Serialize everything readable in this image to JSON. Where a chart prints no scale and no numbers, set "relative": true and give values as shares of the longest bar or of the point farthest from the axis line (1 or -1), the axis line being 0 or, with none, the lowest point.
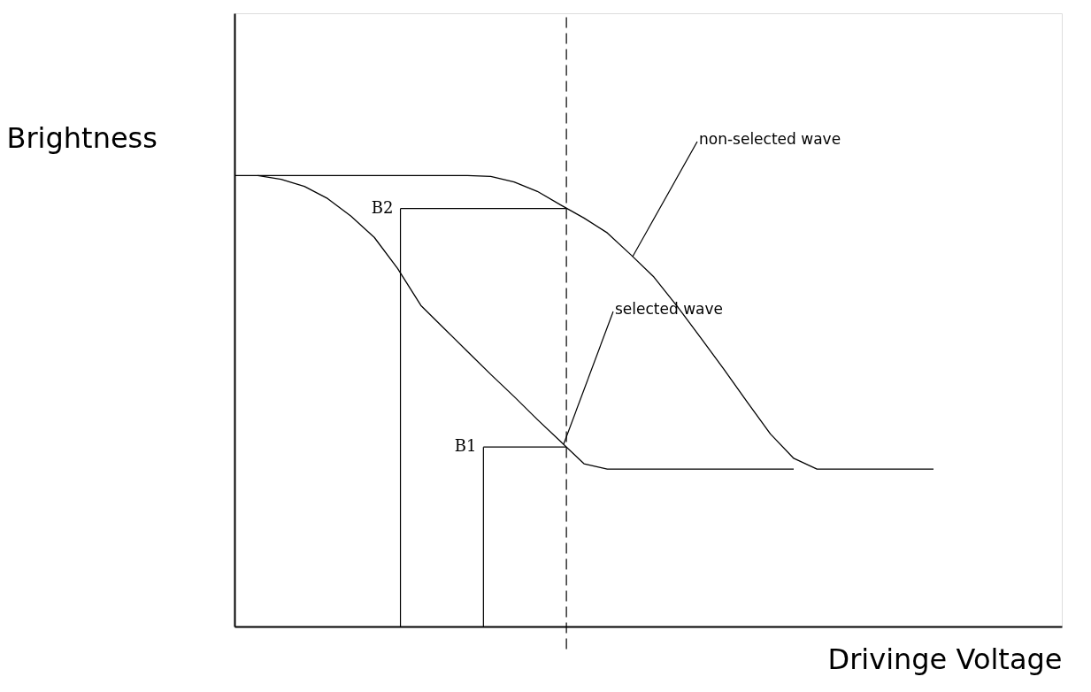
{
  "chart_data": {
    "type": "line",
    "relative": true,
    "xlabel": "Drivinge Voltage",
    "ylabel": "Brightness",
    "categories": [
      null,
      null,
      null,
      null,
      null,
      null,
      null,
      null,
      null,
      null,
      null,
      null,
      null,
      null,
      null,
      null,
      null,
      null,
      null,
      null,
      null,
      null,
      null,
      null,
      null,
      null,
      null,
      null,
      null,
      null,
      null
    ],
    "series": [
      {
        "color": "#000000",
        "values": [
          1.0,
          1.0,
          1.0,
          1.0,
          1.0,
          1.0,
          1.0,
          1.0,
          1.0,
          1.0,
          1.0,
          0.998,
          0.986,
          0.965,
          0.935,
          0.906,
          0.873,
          0.825,
          0.775,
          0.71,
          0.641,
          0.571,
          0.498,
          0.427,
          0.373,
          0.349,
          0.349,
          0.349,
          0.349,
          0.349,
          0.349
        ]
      },
      {
        "color": "#000000",
        "values": [
          null,
          1.0,
          0.992,
          0.976,
          0.949,
          0.91,
          0.863,
          0.794,
          0.712,
          0.661,
          0.61,
          0.559,
          0.51,
          0.459,
          0.41,
          0.361,
          0.349,
          0.349,
          0.349,
          0.349,
          0.349,
          0.349,
          0.349,
          0.349,
          0.349,
          null,
          null,
          null,
          null,
          null,
          null
        ]
      }
    ],
    "ref_lines": [
      {
        "axis": "y",
        "value": 0.927,
        "label": "B2",
        "color": "#000000"
      },
      {
        "axis": "y",
        "value": 0.398,
        "label": "B1",
        "color": "#000000"
      }
    ],
    "annotations": [
      "non-selected wave",
      "selected wave"
    ],
    "grid": false,
    "line_style": "solid",
    "marker": "none"
  }
}
